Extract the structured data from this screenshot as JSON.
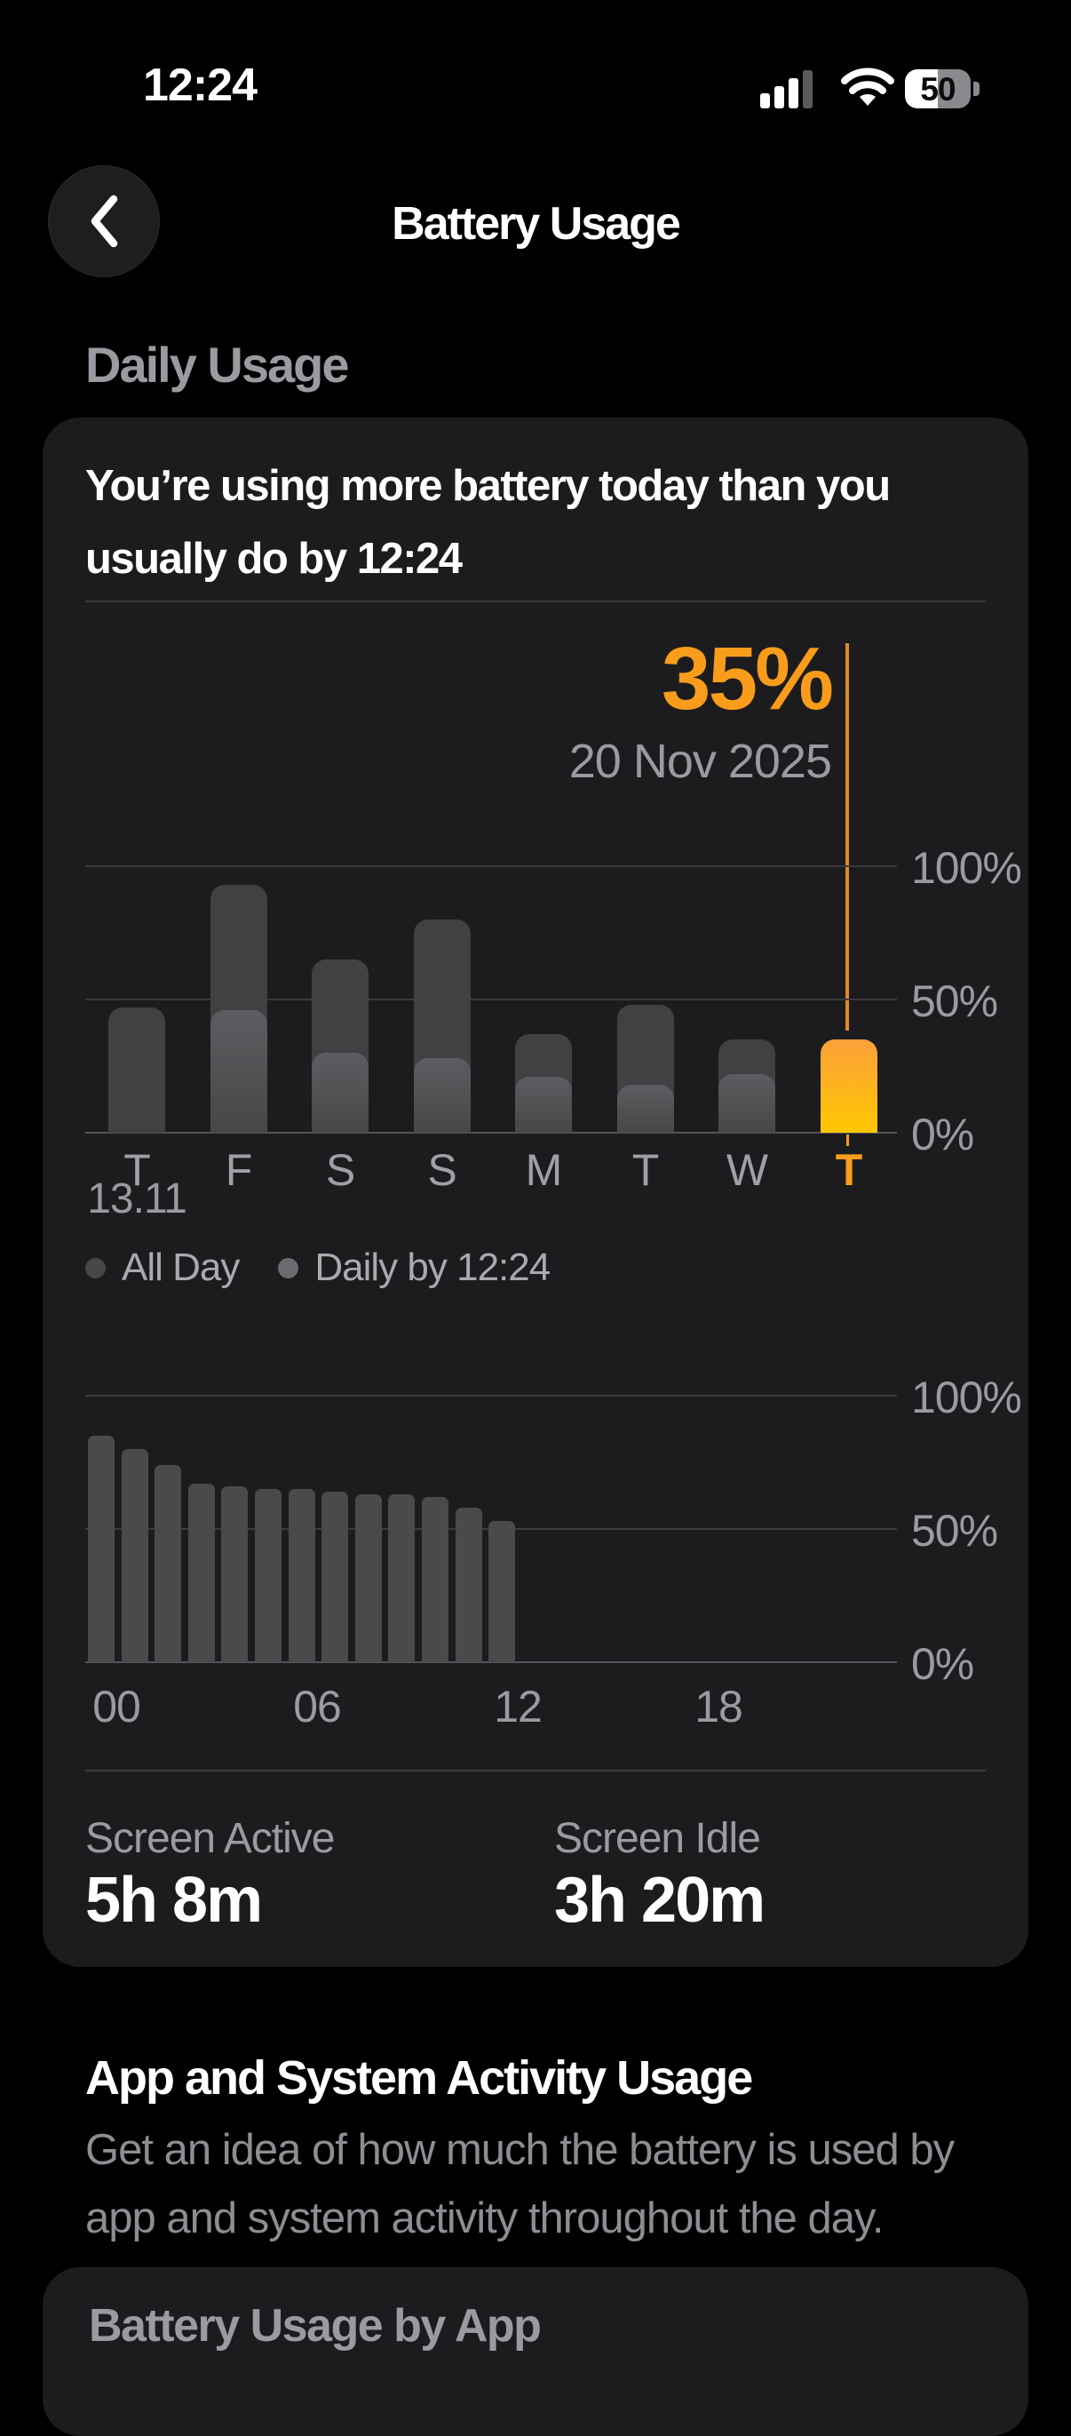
{
  "status_bar": {
    "time": "12:24",
    "battery_percent": "50"
  },
  "nav": {
    "title": "Battery Usage",
    "back_icon": "chevron-left"
  },
  "daily_usage": {
    "section_title": "Daily Usage",
    "headline": "You’re using more battery today than you usually do by 12:24",
    "selected": {
      "value": "35%",
      "date": "20 Nov 2025"
    },
    "colors": {
      "accent_orange": "#F89C1B",
      "bar_orange_top": "#FBA03A",
      "bar_orange_bottom": "#FFC702",
      "bar_all_day": "#414144",
      "bar_partial_top": "#5D5D61",
      "bar_partial_bottom": "#474749",
      "hour_bar": "#4A4A4D"
    },
    "day_chart": {
      "type": "bar",
      "categories": [
        "T",
        "F",
        "S",
        "S",
        "M",
        "T",
        "W",
        "T"
      ],
      "first_day_sublabel": "13.11",
      "series": [
        {
          "name": "All Day",
          "values": [
            47,
            93,
            65,
            80,
            37,
            48,
            35,
            null
          ]
        },
        {
          "name": "Daily by 12:24",
          "values": [
            null,
            46,
            30,
            28,
            21,
            18,
            22,
            35
          ]
        }
      ],
      "selected_index": 7,
      "y_ticks": [
        "100%",
        "50%",
        "0%"
      ],
      "ylim": [
        0,
        100
      ]
    },
    "legend": {
      "items": [
        {
          "label": "All Day"
        },
        {
          "label": "Daily by 12:24"
        }
      ]
    },
    "hour_chart": {
      "type": "bar",
      "hours": [
        0,
        1,
        2,
        3,
        4,
        5,
        6,
        7,
        8,
        9,
        10,
        11,
        12
      ],
      "values": [
        85,
        80,
        74,
        67,
        66,
        65,
        65,
        64,
        63,
        63,
        62,
        58,
        53
      ],
      "x_ticks": [
        "00",
        "06",
        "12",
        "18"
      ],
      "y_ticks": [
        "100%",
        "50%",
        "0%"
      ],
      "ylim": [
        0,
        100
      ]
    },
    "stats": {
      "screen_active_label": "Screen Active",
      "screen_active_value": "5h 8m",
      "screen_idle_label": "Screen Idle",
      "screen_idle_value": "3h 20m"
    }
  },
  "app_activity": {
    "title": "App and System Activity Usage",
    "description": "Get an idea of how much the battery is used by app and system activity throughout the day."
  },
  "battery_by_app": {
    "title": "Battery Usage by App"
  }
}
